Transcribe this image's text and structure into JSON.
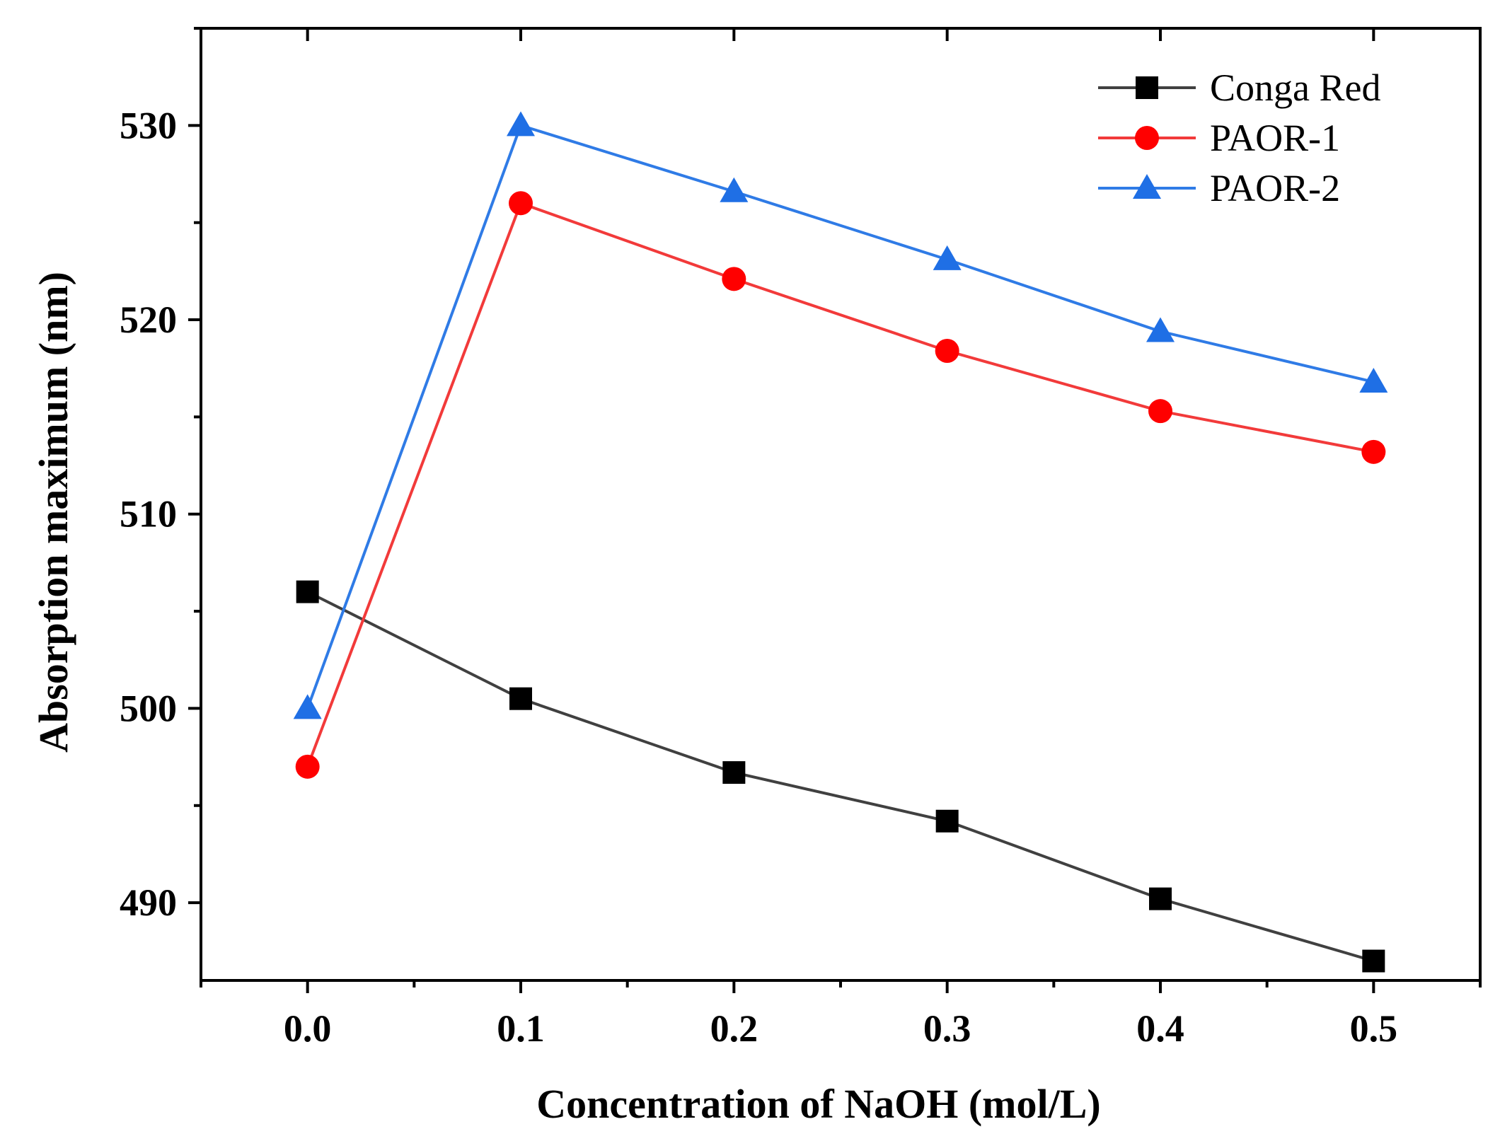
{
  "chart_data": {
    "type": "line",
    "xlabel": "Concentration of NaOH (mol/L)",
    "ylabel": "Absorption maximum (nm)",
    "xlim": [
      -0.05,
      0.55
    ],
    "ylim": [
      486,
      535
    ],
    "x_ticks": [
      0.0,
      0.1,
      0.2,
      0.3,
      0.4,
      0.5
    ],
    "x_tick_labels": [
      "0.0",
      "0.1",
      "0.2",
      "0.3",
      "0.4",
      "0.5"
    ],
    "x_minor_ticks": [
      -0.05,
      0.05,
      0.15,
      0.25,
      0.35,
      0.45,
      0.55
    ],
    "y_ticks": [
      490,
      500,
      510,
      520,
      530
    ],
    "y_tick_labels": [
      "490",
      "500",
      "510",
      "520",
      "530"
    ],
    "y_minor_ticks": [
      495,
      505,
      515,
      525,
      535
    ],
    "legend_position": "top-right",
    "x": [
      0.0,
      0.1,
      0.2,
      0.3,
      0.4,
      0.5
    ],
    "series": [
      {
        "name": "Conga Red",
        "marker": "square",
        "color": "#404040",
        "marker_color": "#000000",
        "values": [
          506,
          500.5,
          496.7,
          494.2,
          490.2,
          487
        ]
      },
      {
        "name": "PAOR-1",
        "marker": "circle",
        "color": "#f23a3a",
        "marker_color": "#ff0000",
        "values": [
          497,
          526,
          522.1,
          518.4,
          515.3,
          513.2
        ]
      },
      {
        "name": "PAOR-2",
        "marker": "triangle",
        "color": "#2f7be6",
        "marker_color": "#1f6fe5",
        "values": [
          500,
          530,
          526.6,
          523.1,
          519.4,
          516.8
        ]
      }
    ]
  }
}
